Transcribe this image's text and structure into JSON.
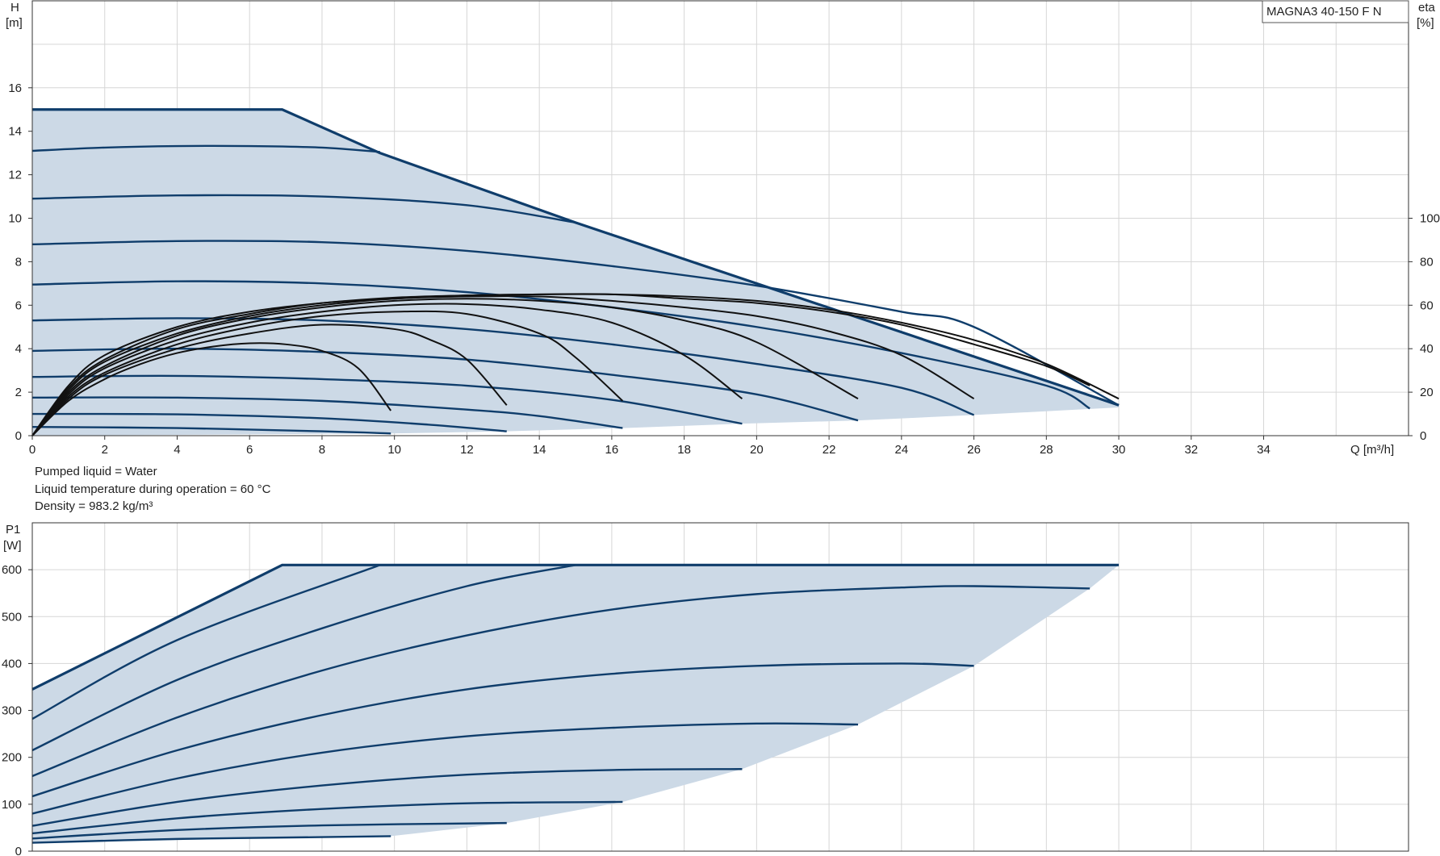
{
  "chart_data": [
    {
      "type": "line",
      "model": "MAGNA3 40-150 F N",
      "xlabel": "Q [m³/h]",
      "ylabel": [
        "H",
        "[m]"
      ],
      "y2label": [
        "eta",
        "[%]"
      ],
      "xlim": [
        0,
        38
      ],
      "ylim": [
        0,
        20
      ],
      "y2lim": [
        0,
        200
      ],
      "xticks": [
        0,
        2,
        4,
        6,
        8,
        10,
        12,
        14,
        16,
        18,
        20,
        22,
        24,
        26,
        28,
        30,
        32,
        34
      ],
      "yticks": [
        0,
        2,
        4,
        6,
        8,
        10,
        12,
        14,
        16
      ],
      "y2ticks": [
        0,
        20,
        40,
        60,
        80,
        100
      ],
      "grid": true,
      "notes": [
        "Pumped liquid = Water",
        "Liquid temperature during operation = 60 °C",
        "Density = 983.2 kg/m³"
      ],
      "envelope": {
        "upper": [
          [
            0,
            15
          ],
          [
            6.9,
            15
          ],
          [
            9.6,
            13.0
          ],
          [
            15.0,
            9.8
          ],
          [
            30.0,
            1.4
          ]
        ],
        "lower": [
          [
            0,
            0
          ],
          [
            9.9,
            0.1
          ],
          [
            13.1,
            0.2
          ],
          [
            16.3,
            0.35
          ],
          [
            19.6,
            0.55
          ],
          [
            22.8,
            0.7
          ],
          [
            26.0,
            0.95
          ],
          [
            30.0,
            1.3
          ]
        ]
      },
      "head_series": [
        {
          "values": [
            [
              0,
              15.0
            ],
            [
              6.9,
              15.0
            ],
            [
              9.6,
              13.0
            ],
            [
              15.0,
              9.8
            ],
            [
              30.0,
              1.4
            ]
          ],
          "max": true
        },
        {
          "values": [
            [
              0,
              13.1
            ],
            [
              2,
              13.25
            ],
            [
              4,
              13.32
            ],
            [
              6,
              13.32
            ],
            [
              8,
              13.25
            ],
            [
              9.6,
              13.05
            ]
          ]
        },
        {
          "values": [
            [
              0,
              10.9
            ],
            [
              4,
              11.05
            ],
            [
              8,
              11.0
            ],
            [
              12,
              10.6
            ],
            [
              15.0,
              9.8
            ]
          ]
        },
        {
          "values": [
            [
              0,
              8.8
            ],
            [
              4,
              8.95
            ],
            [
              8,
              8.9
            ],
            [
              12,
              8.5
            ],
            [
              16,
              7.8
            ],
            [
              20,
              6.9
            ],
            [
              24,
              5.7
            ],
            [
              26,
              5.0
            ],
            [
              30,
              1.4
            ]
          ]
        },
        {
          "values": [
            [
              0,
              6.95
            ],
            [
              4,
              7.1
            ],
            [
              8,
              7.0
            ],
            [
              12,
              6.6
            ],
            [
              16,
              5.9
            ],
            [
              20,
              5.0
            ],
            [
              24,
              3.8
            ],
            [
              28,
              2.3
            ],
            [
              29.2,
              1.25
            ]
          ]
        },
        {
          "values": [
            [
              0,
              5.3
            ],
            [
              4,
              5.4
            ],
            [
              8,
              5.3
            ],
            [
              12,
              4.9
            ],
            [
              16,
              4.2
            ],
            [
              20,
              3.3
            ],
            [
              24,
              2.2
            ],
            [
              26.0,
              0.95
            ]
          ]
        },
        {
          "values": [
            [
              0,
              3.9
            ],
            [
              4,
              4.0
            ],
            [
              8,
              3.85
            ],
            [
              12,
              3.5
            ],
            [
              16,
              2.8
            ],
            [
              20,
              1.9
            ],
            [
              22.8,
              0.7
            ]
          ]
        },
        {
          "values": [
            [
              0,
              2.7
            ],
            [
              4,
              2.75
            ],
            [
              8,
              2.6
            ],
            [
              12,
              2.3
            ],
            [
              16,
              1.65
            ],
            [
              19.6,
              0.55
            ]
          ]
        },
        {
          "values": [
            [
              0,
              1.75
            ],
            [
              4,
              1.75
            ],
            [
              8,
              1.6
            ],
            [
              12,
              1.2
            ],
            [
              14,
              0.9
            ],
            [
              16.3,
              0.35
            ]
          ]
        },
        {
          "values": [
            [
              0,
              1.0
            ],
            [
              4,
              0.98
            ],
            [
              8,
              0.8
            ],
            [
              11,
              0.5
            ],
            [
              13.1,
              0.2
            ]
          ]
        },
        {
          "values": [
            [
              0,
              0.4
            ],
            [
              4,
              0.35
            ],
            [
              8,
              0.2
            ],
            [
              9.9,
              0.1
            ]
          ]
        }
      ],
      "efficiency_series": [
        {
          "values": [
            [
              0,
              0
            ],
            [
              1,
              16
            ],
            [
              2,
              26
            ],
            [
              3,
              33
            ],
            [
              4,
              38
            ],
            [
              5,
              41
            ],
            [
              6,
              42.5
            ],
            [
              7,
              42
            ],
            [
              8,
              39
            ],
            [
              9,
              31
            ],
            [
              9.9,
              11.5
            ]
          ]
        },
        {
          "values": [
            [
              0,
              0
            ],
            [
              1,
              17
            ],
            [
              2,
              28
            ],
            [
              4,
              40
            ],
            [
              6,
              47
            ],
            [
              8,
              51
            ],
            [
              10,
              49
            ],
            [
              11,
              44
            ],
            [
              12,
              35
            ],
            [
              13.1,
              14
            ]
          ]
        },
        {
          "values": [
            [
              0,
              0
            ],
            [
              1,
              18
            ],
            [
              2,
              29
            ],
            [
              4,
              42
            ],
            [
              6,
              50
            ],
            [
              8,
              55
            ],
            [
              10,
              57
            ],
            [
              12,
              56
            ],
            [
              14,
              47
            ],
            [
              15,
              36
            ],
            [
              16.3,
              16
            ]
          ]
        },
        {
          "values": [
            [
              0,
              0
            ],
            [
              1,
              19
            ],
            [
              2,
              31
            ],
            [
              4,
              44
            ],
            [
              6,
              52
            ],
            [
              8,
              57
            ],
            [
              10,
              60
            ],
            [
              12,
              60.5
            ],
            [
              14,
              58
            ],
            [
              16,
              52
            ],
            [
              18,
              37
            ],
            [
              19.6,
              17
            ]
          ]
        },
        {
          "values": [
            [
              0,
              0
            ],
            [
              1,
              20
            ],
            [
              2,
              32
            ],
            [
              4,
              46
            ],
            [
              6,
              54
            ],
            [
              8,
              59
            ],
            [
              10,
              62
            ],
            [
              12,
              63
            ],
            [
              14,
              62
            ],
            [
              16,
              59
            ],
            [
              18,
              53
            ],
            [
              20,
              43
            ],
            [
              22.8,
              17
            ]
          ]
        },
        {
          "values": [
            [
              0,
              0
            ],
            [
              1,
              21
            ],
            [
              2,
              34
            ],
            [
              4,
              47
            ],
            [
              6,
              55
            ],
            [
              8,
              60
            ],
            [
              10,
              63
            ],
            [
              12,
              64
            ],
            [
              14,
              64
            ],
            [
              16,
              62
            ],
            [
              18,
              59
            ],
            [
              20,
              55
            ],
            [
              22,
              48
            ],
            [
              24,
              37
            ],
            [
              26.0,
              17
            ]
          ]
        },
        {
          "values": [
            [
              0,
              0
            ],
            [
              1,
              22
            ],
            [
              2,
              35
            ],
            [
              4,
              49
            ],
            [
              6,
              56
            ],
            [
              8,
              61
            ],
            [
              10,
              63
            ],
            [
              12,
              64.5
            ],
            [
              14,
              65
            ],
            [
              16,
              65
            ],
            [
              18,
              63
            ],
            [
              20,
              61
            ],
            [
              22,
              57
            ],
            [
              24,
              51
            ],
            [
              26,
              42
            ],
            [
              28,
              32
            ],
            [
              29.2,
              23
            ]
          ]
        },
        {
          "values": [
            [
              0,
              0
            ],
            [
              1,
              23
            ],
            [
              2,
              37
            ],
            [
              4,
              50
            ],
            [
              6,
              57
            ],
            [
              8,
              61
            ],
            [
              10,
              63.5
            ],
            [
              12,
              64.5
            ],
            [
              14,
              65
            ],
            [
              16,
              65
            ],
            [
              18,
              64
            ],
            [
              20,
              62
            ],
            [
              22,
              58
            ],
            [
              24,
              52
            ],
            [
              26,
              44
            ],
            [
              28,
              33
            ],
            [
              30.0,
              17
            ]
          ]
        }
      ]
    },
    {
      "type": "line",
      "ylabel": [
        "P1",
        "[W]"
      ],
      "xlim": [
        0,
        38
      ],
      "ylim": [
        0,
        700
      ],
      "yticks": [
        0,
        100,
        200,
        300,
        400,
        500,
        600
      ],
      "grid": true,
      "envelope": {
        "upper": [
          [
            0,
            345
          ],
          [
            6.9,
            610
          ],
          [
            30.0,
            610
          ]
        ],
        "lower": [
          [
            0,
            18
          ],
          [
            9.9,
            32
          ],
          [
            13.1,
            60
          ],
          [
            16.3,
            105
          ],
          [
            19.6,
            175
          ],
          [
            22.8,
            270
          ],
          [
            26.0,
            395
          ],
          [
            29.2,
            560
          ],
          [
            30.0,
            610
          ]
        ]
      },
      "power_series": [
        {
          "values": [
            [
              0,
              345
            ],
            [
              6.9,
              610
            ],
            [
              30.0,
              610
            ]
          ],
          "max": true
        },
        {
          "values": [
            [
              0,
              282
            ],
            [
              4,
              450
            ],
            [
              9.6,
              610
            ]
          ]
        },
        {
          "values": [
            [
              0,
              215
            ],
            [
              4,
              365
            ],
            [
              8,
              475
            ],
            [
              12,
              565
            ],
            [
              15.0,
              610
            ]
          ]
        },
        {
          "values": [
            [
              0,
              160
            ],
            [
              4,
              285
            ],
            [
              8,
              385
            ],
            [
              12,
              460
            ],
            [
              16,
              515
            ],
            [
              20,
              548
            ],
            [
              24,
              562
            ],
            [
              26,
              565
            ],
            [
              29.2,
              560
            ]
          ]
        },
        {
          "values": [
            [
              0,
              117
            ],
            [
              4,
              215
            ],
            [
              8,
              290
            ],
            [
              12,
              345
            ],
            [
              16,
              378
            ],
            [
              20,
              395
            ],
            [
              24,
              400
            ],
            [
              26.0,
              395
            ]
          ]
        },
        {
          "values": [
            [
              0,
              80
            ],
            [
              4,
              155
            ],
            [
              8,
              210
            ],
            [
              12,
              245
            ],
            [
              16,
              263
            ],
            [
              20,
              272
            ],
            [
              22.8,
              270
            ]
          ]
        },
        {
          "values": [
            [
              0,
              54
            ],
            [
              4,
              105
            ],
            [
              8,
              140
            ],
            [
              12,
              163
            ],
            [
              16,
              173
            ],
            [
              19.6,
              175
            ]
          ]
        },
        {
          "values": [
            [
              0,
              38
            ],
            [
              4,
              70
            ],
            [
              8,
              90
            ],
            [
              12,
              102
            ],
            [
              16.3,
              105
            ]
          ]
        },
        {
          "values": [
            [
              0,
              27
            ],
            [
              4,
              45
            ],
            [
              8,
              55
            ],
            [
              13.1,
              60
            ]
          ]
        },
        {
          "values": [
            [
              0,
              18
            ],
            [
              4,
              26
            ],
            [
              8,
              30
            ],
            [
              9.9,
              32
            ]
          ]
        }
      ]
    }
  ]
}
